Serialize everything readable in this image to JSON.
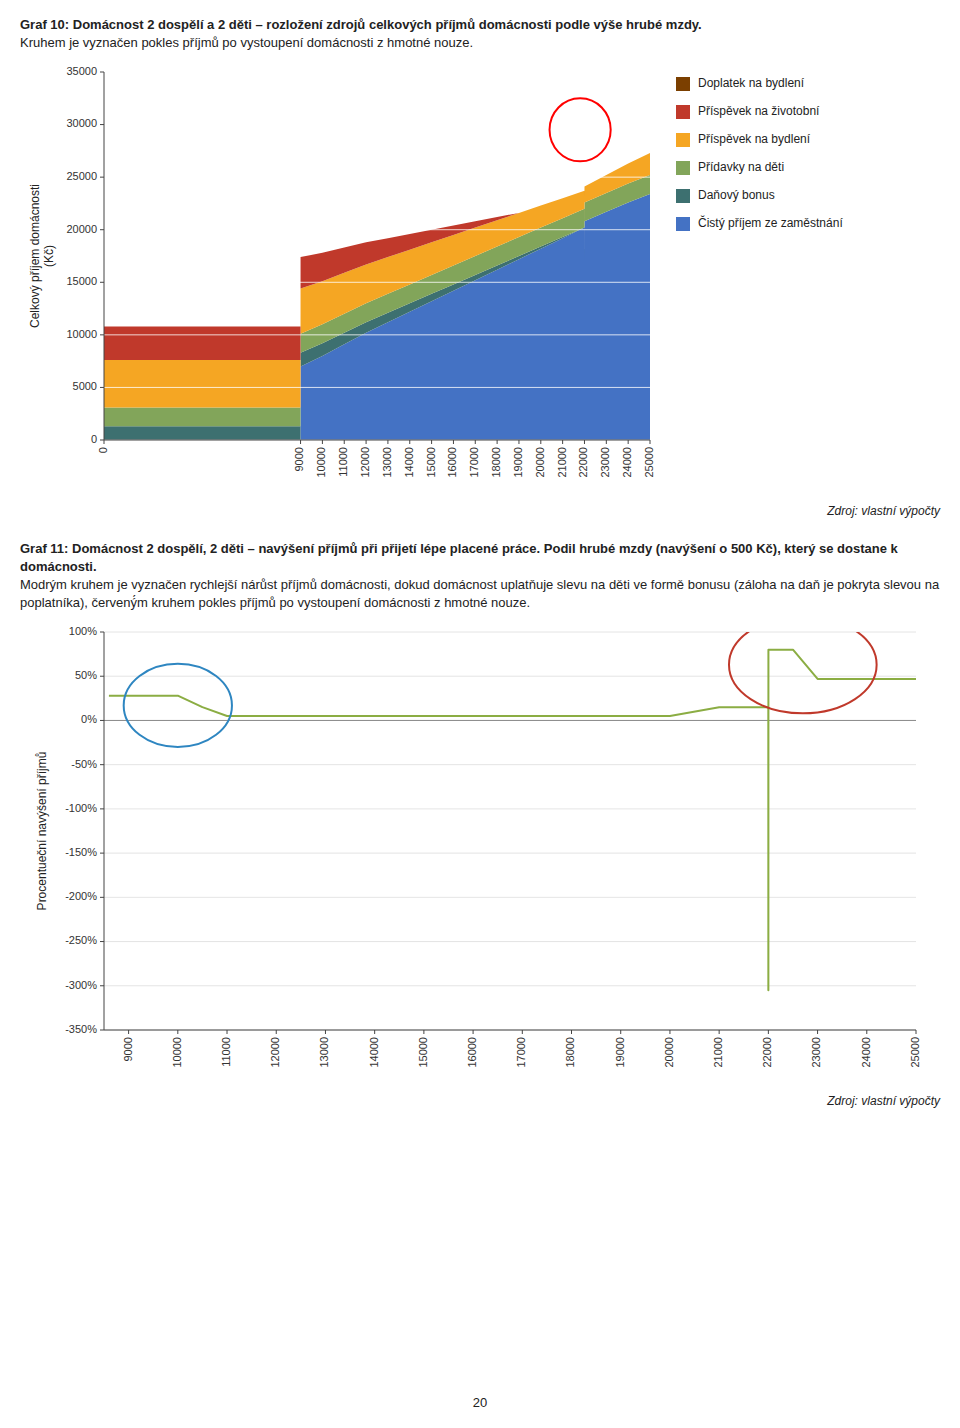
{
  "chart_data": [
    {
      "type": "area",
      "stacked": true,
      "title": "Graf 10: Domácnost 2 dospělí a 2 děti – rozložení zdrojů celkových příjmů domácnosti podle výše hrubé mzdy.",
      "subtitle": "Kruhem je vyznačen pokles příjmů po vystoupení domácnosti z hmotné nouze.",
      "source": "Zdroj: vlastní výpočty",
      "y_label": "Celkový příjem domácnosti\n(Kč)",
      "x": [
        0,
        8999,
        9000,
        10000,
        11000,
        12000,
        13000,
        14000,
        15000,
        16000,
        17000,
        18000,
        19000,
        20000,
        21000,
        21999,
        22000,
        22001,
        23000,
        24000,
        25000
      ],
      "series": [
        {
          "name": "Čistý příjem ze zaměstnání",
          "color": "#4472C4",
          "values": [
            0,
            0,
            7000,
            8000,
            9100,
            10200,
            11200,
            12200,
            13200,
            14200,
            15200,
            16200,
            17200,
            18200,
            19200,
            20200,
            16500,
            20800,
            21700,
            22600,
            23400
          ]
        },
        {
          "name": "Daňový bonus",
          "color": "#3D7070",
          "values": [
            1300,
            1300,
            1300,
            1200,
            1100,
            1000,
            900,
            800,
            700,
            600,
            500,
            400,
            300,
            200,
            100,
            0,
            0,
            0,
            0,
            0,
            0
          ]
        },
        {
          "name": "Přídavky na děti",
          "color": "#82A55A",
          "values": [
            1800,
            1800,
            1800,
            1800,
            1800,
            1800,
            1800,
            1800,
            1800,
            1800,
            1800,
            1800,
            1800,
            1800,
            1800,
            1800,
            1800,
            1800,
            1800,
            1800,
            1800
          ]
        },
        {
          "name": "Příspěvek na bydlení",
          "color": "#F5A623",
          "values": [
            4500,
            4500,
            4300,
            4100,
            3900,
            3700,
            3500,
            3300,
            3100,
            2900,
            2700,
            2500,
            2300,
            2100,
            1900,
            1700,
            4800,
            1500,
            1700,
            1900,
            2100
          ]
        },
        {
          "name": "Příspěvek na životobní",
          "color": "#C0392B",
          "values": [
            3200,
            3200,
            3000,
            2700,
            2400,
            2100,
            1800,
            1500,
            1200,
            900,
            600,
            300,
            0,
            0,
            0,
            0,
            0,
            0,
            0,
            0,
            0
          ]
        },
        {
          "name": "Doplatek na bydlení",
          "color": "#7B3F00",
          "values": [
            0,
            0,
            0,
            0,
            0,
            0,
            0,
            0,
            0,
            0,
            0,
            0,
            0,
            0,
            0,
            0,
            600,
            0,
            0,
            0,
            0
          ]
        }
      ],
      "xlim": [
        0,
        25000
      ],
      "ylim": [
        0,
        35000
      ],
      "xticks": [
        0,
        9000,
        10000,
        11000,
        12000,
        13000,
        14000,
        15000,
        16000,
        17000,
        18000,
        19000,
        20000,
        21000,
        22000,
        23000,
        24000,
        25000
      ],
      "yticks": [
        0,
        5000,
        10000,
        15000,
        20000,
        25000,
        30000,
        35000
      ],
      "grid": true,
      "legend": "right",
      "ellipses": [
        {
          "cx": 21800,
          "cy": 29500,
          "width": 2800,
          "height": 6000,
          "color": "red"
        }
      ]
    },
    {
      "type": "line",
      "title": "Graf 11: Domácnost 2 dospělí, 2 děti – navýšení příjmů při přijetí lépe placené práce. Podil hrubé mzdy (navýšení o 500 Kč), který se dostane k domácnosti.",
      "subtitle": "Modrým kruhem je vyznačen rychlejší nárůst příjmů domácnosti, dokud domácnost uplatňuje slevu na děti ve formě bonusu (záloha na daň je pokryta slevou na poplatníka), červený́m kruhem pokles příjmů po vystoupení domácnosti z hmotné nouze.",
      "source": "Zdroj: vlastní výpočty",
      "y_label": "Procentueční navýšení příjmů",
      "x": [
        8600,
        9500,
        10000,
        10500,
        11000,
        11500,
        12000,
        13000,
        14000,
        15000,
        16000,
        17000,
        18000,
        19000,
        20000,
        21000,
        21500,
        21999,
        22000,
        22001,
        22500,
        23000,
        23500,
        24000,
        25000
      ],
      "series": [
        {
          "color": "#8BAD43",
          "values": [
            28,
            28,
            28,
            15,
            5,
            5,
            5,
            5,
            5,
            5,
            5,
            5,
            5,
            5,
            5,
            15,
            15,
            15,
            -305,
            80,
            80,
            47,
            47,
            47,
            47
          ]
        }
      ],
      "xlim": [
        8500,
        25000
      ],
      "ylim": [
        -350,
        100
      ],
      "xticks": [
        9000,
        10000,
        11000,
        12000,
        13000,
        14000,
        15000,
        16000,
        17000,
        18000,
        19000,
        20000,
        21000,
        22000,
        23000,
        24000,
        25000
      ],
      "yticks": [
        {
          "value": -350,
          "label": "-350%"
        },
        {
          "value": -300,
          "label": "-300%"
        },
        {
          "value": -250,
          "label": "-250%"
        },
        {
          "value": -200,
          "label": "-200%"
        },
        {
          "value": -150,
          "label": "-150%"
        },
        {
          "value": -100,
          "label": "-100%"
        },
        {
          "value": -50,
          "label": "-50%"
        },
        {
          "value": 0,
          "label": "0%"
        },
        {
          "value": 50,
          "label": "50%"
        },
        {
          "value": 100,
          "label": "100%"
        }
      ],
      "grid": true,
      "ellipses": [
        {
          "cx": 10000,
          "cy": 17,
          "width": 2200,
          "height": 94,
          "color": "#2E86C1"
        },
        {
          "cx": 22700,
          "cy": 63,
          "width": 3000,
          "height": 110,
          "color": "#C0392B"
        }
      ]
    }
  ],
  "page_number": "20"
}
